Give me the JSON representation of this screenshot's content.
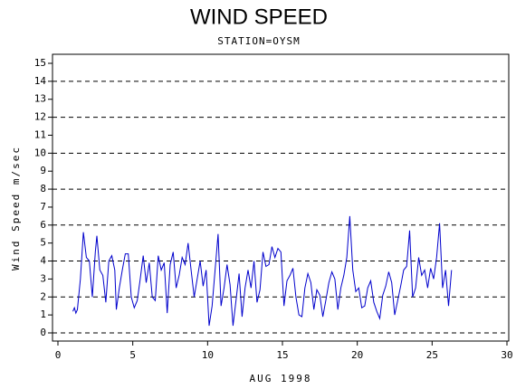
{
  "chart_data": {
    "type": "line",
    "title": "WIND SPEED",
    "subtitle": "STATION=OYSM",
    "x_label": "AUG 1998",
    "y_label": "Wind Speed m/sec",
    "color": "#0000cc",
    "xlim": [
      0,
      30
    ],
    "xticks": [
      0,
      5,
      10,
      15,
      20,
      25,
      30
    ],
    "ylim": [
      0,
      15
    ],
    "yticks": [
      0,
      1,
      2,
      3,
      4,
      5,
      6,
      7,
      8,
      9,
      10,
      11,
      12,
      13,
      14,
      15
    ],
    "grid": true,
    "grid_values": [
      0,
      2,
      4,
      6,
      8,
      10,
      12,
      14
    ],
    "x": [
      1.0,
      1.1,
      1.2,
      1.3,
      1.5,
      1.7,
      1.9,
      2.1,
      2.3,
      2.5,
      2.6,
      2.8,
      3.0,
      3.2,
      3.4,
      3.6,
      3.8,
      3.9,
      4.1,
      4.3,
      4.5,
      4.7,
      4.9,
      5.1,
      5.3,
      5.5,
      5.7,
      5.9,
      6.1,
      6.3,
      6.5,
      6.7,
      6.9,
      7.1,
      7.3,
      7.5,
      7.7,
      7.9,
      8.1,
      8.3,
      8.5,
      8.7,
      8.9,
      9.1,
      9.3,
      9.5,
      9.7,
      9.9,
      10.1,
      10.3,
      10.5,
      10.7,
      10.9,
      11.1,
      11.3,
      11.5,
      11.7,
      11.9,
      12.1,
      12.3,
      12.5,
      12.7,
      12.9,
      13.1,
      13.3,
      13.5,
      13.7,
      13.9,
      14.1,
      14.3,
      14.5,
      14.7,
      14.9,
      15.1,
      15.3,
      15.5,
      15.7,
      15.9,
      16.1,
      16.3,
      16.5,
      16.7,
      16.9,
      17.1,
      17.3,
      17.5,
      17.7,
      17.9,
      18.1,
      18.3,
      18.5,
      18.7,
      18.9,
      19.1,
      19.3,
      19.5,
      19.7,
      19.9,
      20.1,
      20.3,
      20.5,
      20.7,
      20.9,
      21.1,
      21.3,
      21.5,
      21.7,
      21.9,
      22.1,
      22.3,
      22.5,
      22.7,
      22.9,
      23.1,
      23.3,
      23.5,
      23.7,
      23.9,
      24.1,
      24.3,
      24.5,
      24.7,
      24.9,
      25.1,
      25.3,
      25.5,
      25.7,
      25.9,
      26.1,
      26.3
    ],
    "values": [
      1.2,
      1.4,
      1.1,
      1.3,
      3.0,
      5.6,
      4.2,
      4.0,
      2.0,
      4.5,
      5.4,
      3.5,
      3.2,
      1.7,
      4.0,
      4.3,
      3.5,
      1.3,
      2.5,
      3.5,
      4.4,
      4.4,
      2.0,
      1.4,
      1.8,
      3.0,
      4.3,
      2.8,
      3.9,
      2.0,
      1.8,
      4.3,
      3.5,
      3.9,
      1.1,
      3.8,
      4.5,
      2.5,
      3.2,
      4.2,
      3.8,
      5.0,
      3.5,
      2.0,
      3.0,
      4.0,
      2.6,
      3.5,
      0.4,
      1.5,
      3.5,
      5.5,
      1.5,
      2.5,
      3.8,
      2.7,
      0.4,
      1.8,
      3.3,
      0.9,
      2.5,
      3.5,
      2.5,
      4.0,
      1.7,
      2.4,
      4.5,
      3.7,
      3.8,
      4.8,
      4.2,
      4.7,
      4.5,
      1.5,
      2.9,
      3.2,
      3.6,
      2.0,
      1.0,
      0.9,
      2.5,
      3.3,
      2.8,
      1.3,
      2.4,
      2.1,
      0.9,
      1.8,
      2.8,
      3.4,
      3.0,
      1.3,
      2.5,
      3.2,
      4.2,
      6.5,
      3.5,
      2.3,
      2.5,
      1.4,
      1.5,
      2.5,
      2.9,
      1.7,
      1.2,
      0.8,
      2.1,
      2.6,
      3.4,
      2.8,
      1.0,
      1.8,
      2.6,
      3.5,
      3.7,
      5.7,
      2.0,
      2.5,
      4.2,
      3.2,
      3.5,
      2.5,
      3.6,
      3.0,
      4.2,
      6.1,
      2.5,
      3.5,
      1.5,
      3.5
    ]
  }
}
